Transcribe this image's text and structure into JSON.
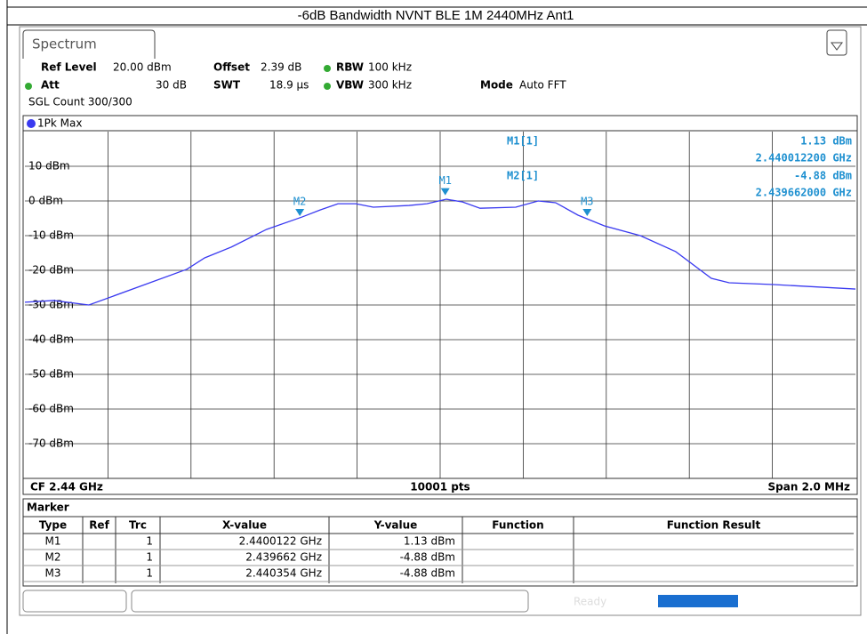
{
  "page_title": "-6dB Bandwidth NVNT BLE 1M 2440MHz Ant1",
  "tab": "Spectrum",
  "settings": {
    "ref_level_label": "Ref Level",
    "ref_level": "20.00 dBm",
    "offset_label": "Offset",
    "offset": "2.39 dB",
    "rbw_label": "RBW",
    "rbw": "100 kHz",
    "att_label": "Att",
    "att": "30 dB",
    "swt_label": "SWT",
    "swt": "18.9 µs",
    "vbw_label": "VBW",
    "vbw": "300 kHz",
    "mode_label": "Mode",
    "mode": "Auto FFT",
    "sgl_count": "SGL Count 300/300"
  },
  "trace_label": "1Pk Max",
  "chart_data": {
    "type": "line",
    "x": [
      2.439,
      2.439069,
      2.439154,
      2.43939,
      2.439433,
      2.439497,
      2.439582,
      2.439668,
      2.439711,
      2.439754,
      2.439797,
      2.439839,
      2.439925,
      2.439968,
      2.440015,
      2.440054,
      2.440096,
      2.440182,
      2.440236,
      2.440278,
      2.440332,
      2.440396,
      2.440482,
      2.440567,
      2.440653,
      2.440696,
      2.440803,
      2.441
    ],
    "series": [
      {
        "name": "1Pk Max",
        "color": "#3a3af0",
        "values": [
          -29.2,
          -28.7,
          -30,
          -19.7,
          -16.4,
          -13.3,
          -8.2,
          -4.6,
          -2.6,
          -0.8,
          -0.8,
          -1.8,
          -1.3,
          -0.8,
          0.5,
          -0.3,
          -2.1,
          -1.8,
          0,
          -0.5,
          -4.1,
          -7.2,
          -10,
          -14.6,
          -22.3,
          -23.6,
          -24.1,
          -25.4
        ]
      }
    ],
    "xlim": [
      2.439,
      2.441
    ],
    "ylim": [
      -80,
      20
    ],
    "yticks": [
      {
        "value": 10,
        "label": "10 dBm"
      },
      {
        "value": 0,
        "label": "0 dBm"
      },
      {
        "value": -10,
        "label": "-10 dBm"
      },
      {
        "value": -20,
        "label": "-20 dBm"
      },
      {
        "value": -30,
        "label": "-30 dBm"
      },
      {
        "value": -40,
        "label": "-40 dBm"
      },
      {
        "value": -50,
        "label": "-50 dBm"
      },
      {
        "value": -60,
        "label": "-60 dBm"
      },
      {
        "value": -70,
        "label": "-70 dBm"
      }
    ],
    "grid": true,
    "markers": [
      {
        "name": "M1",
        "x": 2.4400122,
        "y": 1.13,
        "color": "#1e90d0"
      },
      {
        "name": "M2",
        "x": 2.439662,
        "y": -4.88,
        "color": "#1e90d0"
      },
      {
        "name": "M3",
        "x": 2.440354,
        "y": -4.88,
        "color": "#1e90d0"
      }
    ]
  },
  "readout": [
    {
      "name": "M1[1]",
      "level": "1.13 dBm",
      "freq": "2.440012200 GHz"
    },
    {
      "name": "M2[1]",
      "level": "-4.88 dBm",
      "freq": "2.439662000 GHz"
    }
  ],
  "footer": {
    "cf": "CF 2.44 GHz",
    "points": "10001 pts",
    "span": "Span 2.0 MHz"
  },
  "table": {
    "title": "Marker",
    "header": [
      "Type",
      "Ref",
      "Trc",
      "X-value",
      "Y-value",
      "Function",
      "Function Result"
    ],
    "rows": [
      [
        "M1",
        "",
        "1",
        "2.4400122 GHz",
        "1.13 dBm",
        "",
        ""
      ],
      [
        "M2",
        "",
        "1",
        "2.439662 GHz",
        "-4.88 dBm",
        "",
        ""
      ],
      [
        "M3",
        "",
        "1",
        "2.440354 GHz",
        "-4.88 dBm",
        "",
        ""
      ]
    ]
  },
  "status": "Ready"
}
